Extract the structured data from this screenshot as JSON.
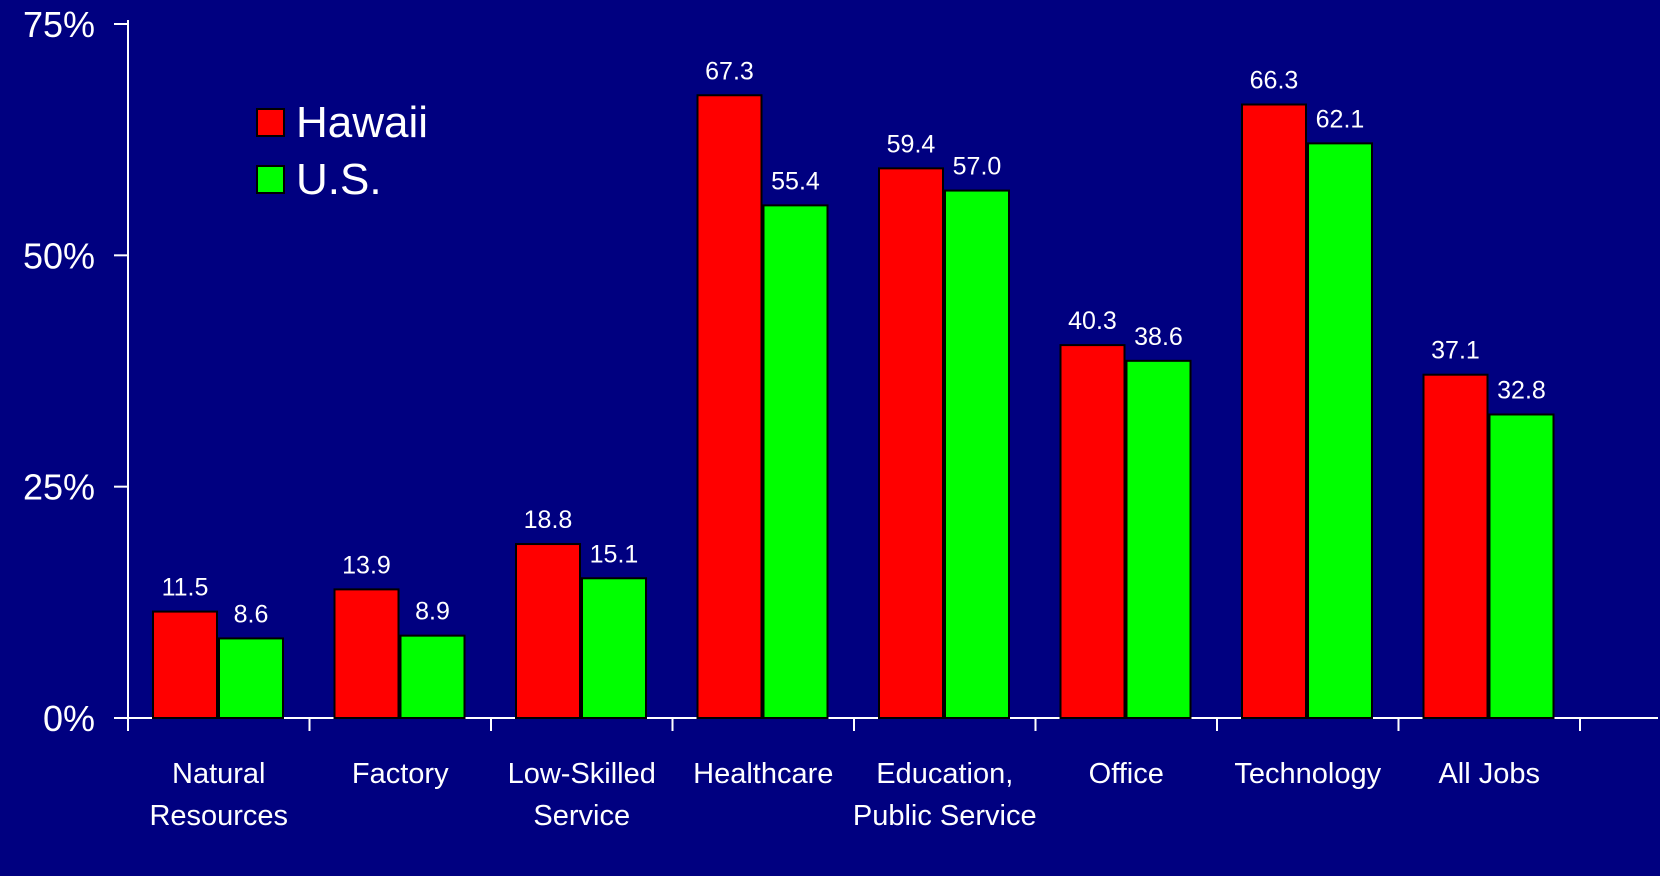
{
  "chart_data": {
    "type": "bar",
    "categories": [
      [
        "Natural",
        "Resources"
      ],
      [
        "Factory"
      ],
      [
        "Low-Skilled",
        "Service"
      ],
      [
        "Healthcare"
      ],
      [
        "Education,",
        "Public Service"
      ],
      [
        "Office"
      ],
      [
        "Technology"
      ],
      [
        "All Jobs"
      ]
    ],
    "series": [
      {
        "name": "Hawaii",
        "color": "#ff0000",
        "values": [
          11.5,
          13.9,
          18.8,
          67.3,
          59.4,
          40.3,
          66.3,
          37.1
        ],
        "labels": [
          "11.5",
          "13.9",
          "18.8",
          "67.3",
          "59.4",
          "40.3",
          "66.3",
          "37.1"
        ]
      },
      {
        "name": "U.S.",
        "color": "#00ff00",
        "values": [
          8.6,
          8.9,
          15.1,
          55.4,
          57.0,
          38.6,
          62.1,
          32.8
        ],
        "labels": [
          "8.6",
          "8.9",
          "15.1",
          "55.4",
          "57.0",
          "38.6",
          "62.1",
          "32.8"
        ]
      }
    ],
    "yticks": [
      0,
      25,
      50,
      75
    ],
    "ytick_labels": [
      "0%",
      "25%",
      "50%",
      "75%"
    ],
    "ylim": [
      0,
      75
    ],
    "title": "",
    "xlabel": "",
    "ylabel": "",
    "grid": false,
    "legend": "top-left"
  },
  "colors": {
    "background": "#000080",
    "axis": "#ffffff",
    "text": "#ffffff"
  }
}
